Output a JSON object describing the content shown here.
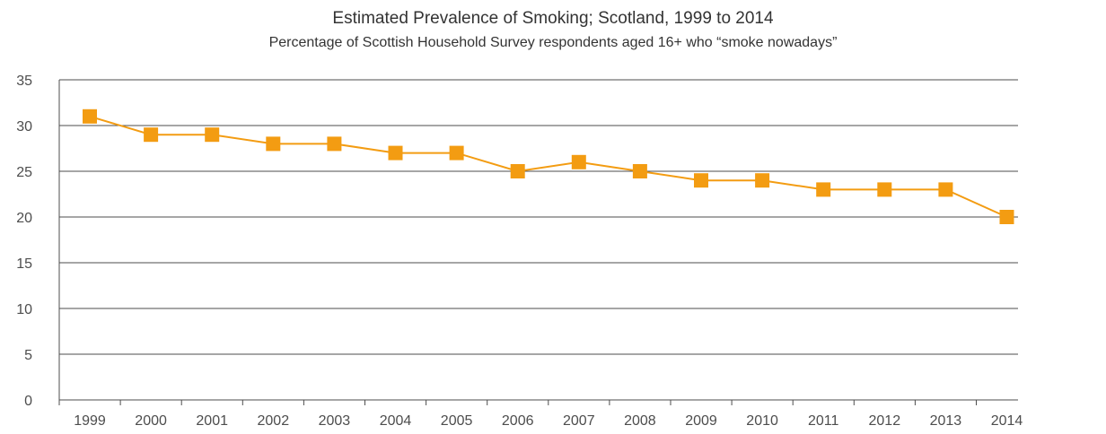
{
  "chart_data": {
    "type": "line",
    "title": "Estimated Prevalence of Smoking; Scotland, 1999 to 2014",
    "subtitle": "Percentage of Scottish Household Survey respondents aged 16+ who “smoke nowadays”",
    "xlabel": "",
    "ylabel": "",
    "categories": [
      "1999",
      "2000",
      "2001",
      "2002",
      "2003",
      "2004",
      "2005",
      "2006",
      "2007",
      "2008",
      "2009",
      "2010",
      "2011",
      "2012",
      "2013",
      "2014"
    ],
    "series": [
      {
        "values": [
          31,
          29,
          29,
          28,
          28,
          27,
          27,
          25,
          26,
          25,
          24,
          24,
          23,
          23,
          23,
          20
        ],
        "color": "#f39c12"
      }
    ],
    "ylim": [
      0,
      35
    ],
    "yticks": [
      0,
      5,
      10,
      15,
      20,
      25,
      30,
      35
    ],
    "grid": true,
    "marker": "square",
    "legend": "none"
  }
}
